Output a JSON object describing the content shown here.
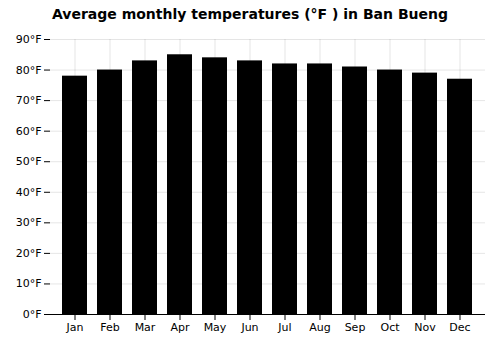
{
  "chart_data": {
    "type": "bar",
    "title": "Average monthly temperatures (°F ) in Ban Bueng",
    "categories": [
      "Jan",
      "Feb",
      "Mar",
      "Apr",
      "May",
      "Jun",
      "Jul",
      "Aug",
      "Sep",
      "Oct",
      "Nov",
      "Dec"
    ],
    "values": [
      78,
      80,
      83,
      85,
      84,
      83,
      82,
      82,
      81,
      80,
      79,
      77
    ],
    "ylim": [
      0,
      90
    ],
    "yticks": [
      {
        "value": 0,
        "label": "0°F"
      },
      {
        "value": 10,
        "label": "10°F"
      },
      {
        "value": 20,
        "label": "20°F"
      },
      {
        "value": 30,
        "label": "30°F"
      },
      {
        "value": 40,
        "label": "40°F"
      },
      {
        "value": 50,
        "label": "50°F"
      },
      {
        "value": 60,
        "label": "60°F"
      },
      {
        "value": 70,
        "label": "70°F"
      },
      {
        "value": 80,
        "label": "80°F"
      },
      {
        "value": 90,
        "label": "90°F"
      }
    ],
    "grid": true
  }
}
